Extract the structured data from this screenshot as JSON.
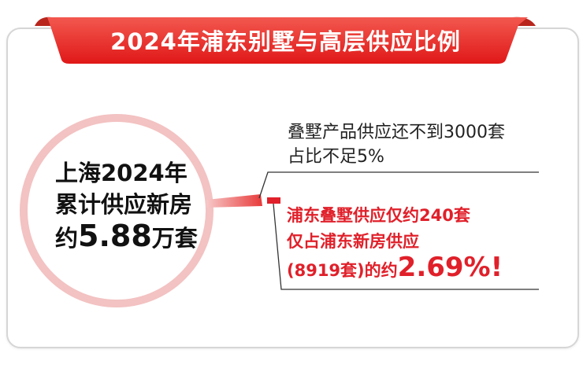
{
  "title": "2024年浦东别墅与高层供应比例",
  "circle": {
    "line1": "上海2024年",
    "line2": "累计供应新房",
    "line3_prefix": "约",
    "line3_value": "5.88",
    "line3_suffix": "万套"
  },
  "note": {
    "line1": "叠墅产品供应还不到3000套",
    "line2": "占比不足5%"
  },
  "highlight": {
    "line1_prefix": "浦东叠墅供应仅约",
    "line1_value": "240",
    "line1_suffix": "套",
    "line2": "仅占浦东新房供应",
    "line3_prefix": "(8919套)的约",
    "line3_value": "2.69%!"
  },
  "colors": {
    "accent": "#e0202a",
    "ring": "#f3c2c2"
  }
}
